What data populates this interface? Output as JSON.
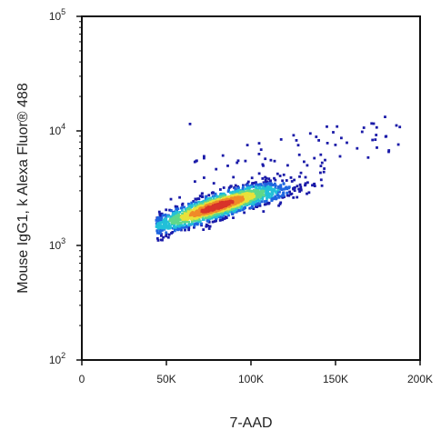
{
  "chart_data": {
    "type": "scatter",
    "subtype": "flow-cytometry-density-plot",
    "title": "",
    "xlabel": "7-AAD",
    "ylabel": "Mouse IgG1, k Alexa Fluor® 488",
    "x_scale": "linear",
    "y_scale": "log",
    "xlim": [
      0,
      200000
    ],
    "ylim": [
      100,
      100000
    ],
    "x_ticks": [
      {
        "value": 0,
        "label": "0"
      },
      {
        "value": 50000,
        "label": "50K"
      },
      {
        "value": 100000,
        "label": "100K"
      },
      {
        "value": 150000,
        "label": "150K"
      },
      {
        "value": 200000,
        "label": "200K"
      }
    ],
    "y_ticks": [
      {
        "value": 100,
        "base": "10",
        "exp": "2"
      },
      {
        "value": 1000,
        "base": "10",
        "exp": "3"
      },
      {
        "value": 10000,
        "base": "10",
        "exp": "4"
      },
      {
        "value": 100000,
        "base": "10",
        "exp": "5"
      }
    ],
    "grid": false,
    "density_colors": [
      "#1a1aa8",
      "#1f66e0",
      "#22c0d8",
      "#5fd88a",
      "#e8e23a",
      "#f08a28",
      "#d8342a"
    ],
    "population": {
      "description": "single elongated population",
      "core": [
        {
          "x": 62000,
          "y": 1800
        },
        {
          "x": 80000,
          "y": 2200
        },
        {
          "x": 100000,
          "y": 2700
        },
        {
          "x": 120000,
          "y": 3100
        }
      ],
      "x_range": [
        43000,
        190000
      ],
      "y_range": [
        1200,
        12000
      ]
    }
  }
}
